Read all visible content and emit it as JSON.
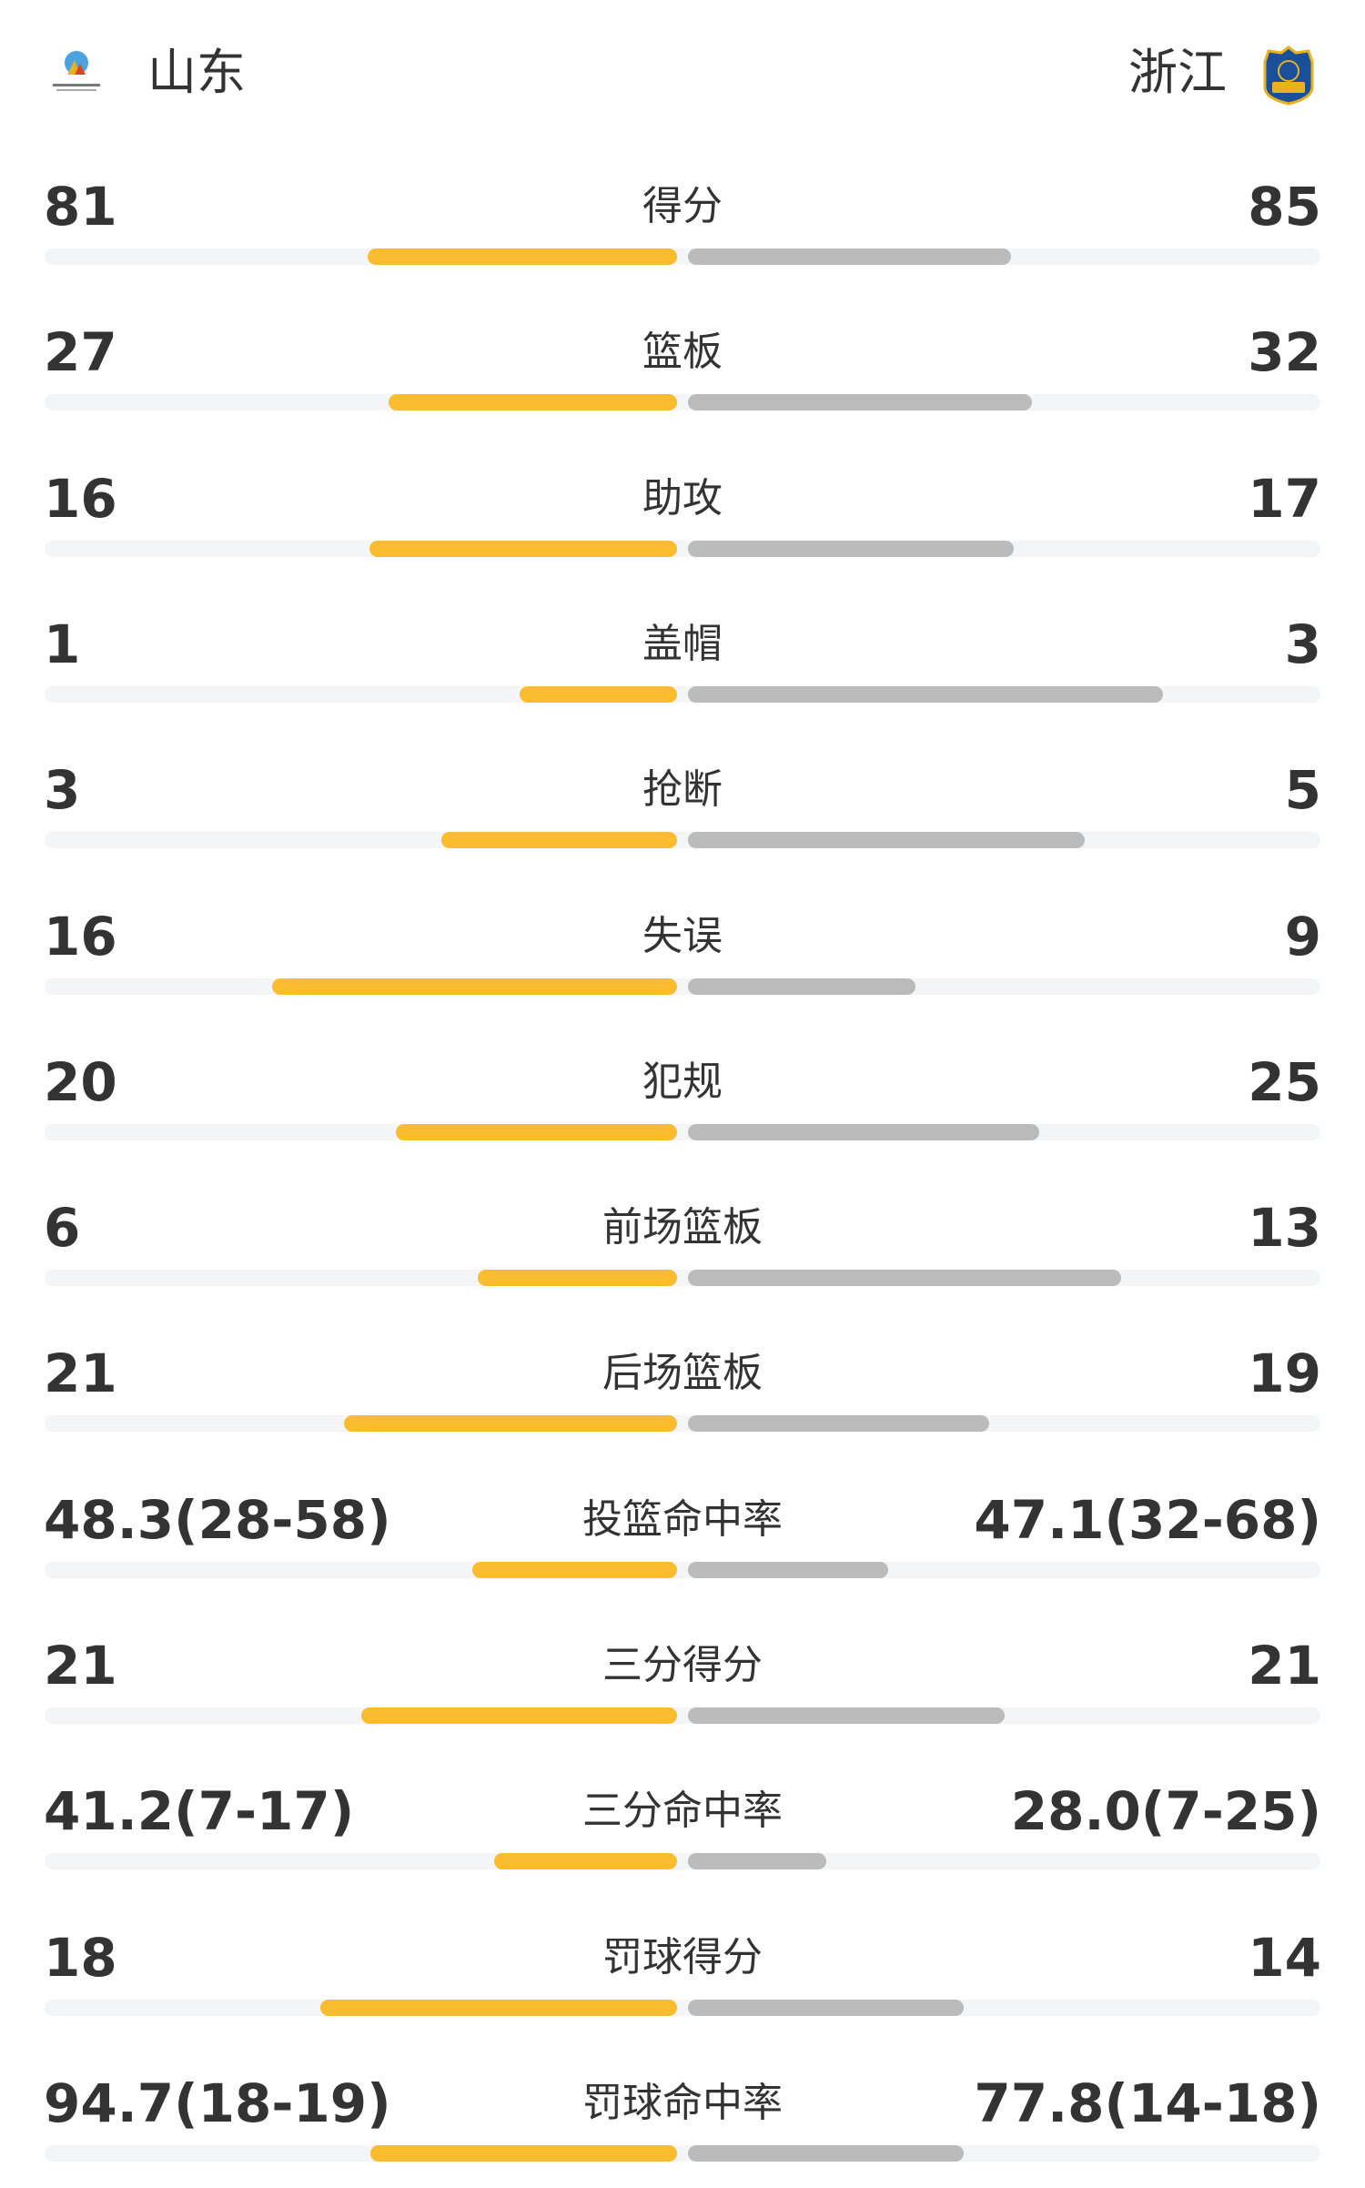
{
  "header": {
    "home_team": "山东",
    "away_team": "浙江",
    "home_logo_icon": "shandong-basketball-association-logo",
    "away_logo_icon": "zhejiang-guangsha-shield-logo"
  },
  "colors": {
    "home_bar": "#fbbd2f",
    "away_bar": "#bbbbbb",
    "track": "#f4f5f7"
  },
  "stats": [
    {
      "label": "得分",
      "home": "81",
      "away": "85",
      "home_fill": 0.489,
      "away_fill": 0.511
    },
    {
      "label": "篮板",
      "home": "27",
      "away": "32",
      "home_fill": 0.456,
      "away_fill": 0.544
    },
    {
      "label": "助攻",
      "home": "16",
      "away": "17",
      "home_fill": 0.487,
      "away_fill": 0.515
    },
    {
      "label": "盖帽",
      "home": "1",
      "away": "3",
      "home_fill": 0.249,
      "away_fill": 0.751
    },
    {
      "label": "抢断",
      "home": "3",
      "away": "5",
      "home_fill": 0.372,
      "away_fill": 0.628
    },
    {
      "label": "失误",
      "home": "16",
      "away": "9",
      "home_fill": 0.641,
      "away_fill": 0.359
    },
    {
      "label": "犯规",
      "home": "20",
      "away": "25",
      "home_fill": 0.445,
      "away_fill": 0.555
    },
    {
      "label": "前场篮板",
      "home": "6",
      "away": "13",
      "home_fill": 0.315,
      "away_fill": 0.685
    },
    {
      "label": "后场篮板",
      "home": "21",
      "away": "19",
      "home_fill": 0.526,
      "away_fill": 0.476
    },
    {
      "label": "投篮命中率",
      "home": "48.3(28-58)",
      "away": "47.1(32-68)",
      "home_fill": 0.324,
      "away_fill": 0.317
    },
    {
      "label": "三分得分",
      "home": "21",
      "away": "21",
      "home_fill": 0.5,
      "away_fill": 0.5
    },
    {
      "label": "三分命中率",
      "home": "41.2(7-17)",
      "away": "28.0(7-25)",
      "home_fill": 0.289,
      "away_fill": 0.218
    },
    {
      "label": "罚球得分",
      "home": "18",
      "away": "14",
      "home_fill": 0.564,
      "away_fill": 0.436
    },
    {
      "label": "罚球命中率",
      "home": "94.7(18-19)",
      "away": "77.8(14-18)",
      "home_fill": 0.485,
      "away_fill": 0.436
    }
  ]
}
